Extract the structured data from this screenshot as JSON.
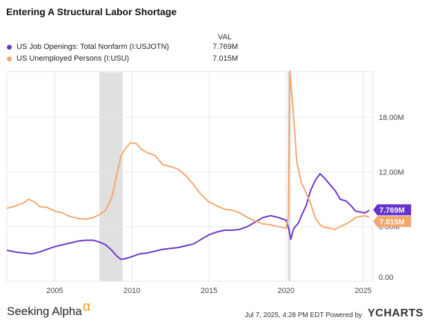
{
  "page": {
    "title": "Entering A Structural Labor Shortage",
    "val_header": "VAL",
    "footer_brand": "Seeking Alpha",
    "footer_brand_symbol": "α",
    "footer_info": "Jul 7, 2025, 4:28 PM EDT Powered by",
    "footer_logo": "YCHARTS"
  },
  "chart_data": {
    "type": "line",
    "title": "Entering A Structural Labor Shortage",
    "xlabel": "",
    "ylabel": "",
    "x_ticks": [
      2005,
      2010,
      2015,
      2020,
      2025
    ],
    "y_ticks": [
      {
        "value": 0,
        "label": "0.00"
      },
      {
        "value": 6,
        "label": "6.00M"
      },
      {
        "value": 12,
        "label": "12.00M"
      },
      {
        "value": 18,
        "label": "18.00M"
      }
    ],
    "xlim": [
      2001.9,
      2025.6
    ],
    "ylim": [
      0,
      23
    ],
    "grid": true,
    "legend_position": "top-left",
    "recessions": [
      [
        2007.9,
        2009.4
      ],
      [
        2020.1,
        2020.3
      ]
    ],
    "series": [
      {
        "name": "US Job Openings: Total Nonfarm (I:USJOTN)",
        "color": "#6633cc",
        "last_value_label": "7.769M",
        "points": [
          [
            2001.9,
            3.4
          ],
          [
            2002.5,
            3.2
          ],
          [
            2003.0,
            3.1
          ],
          [
            2003.5,
            3.0
          ],
          [
            2004.0,
            3.2
          ],
          [
            2004.5,
            3.5
          ],
          [
            2005.0,
            3.8
          ],
          [
            2005.5,
            4.0
          ],
          [
            2006.0,
            4.2
          ],
          [
            2006.5,
            4.4
          ],
          [
            2007.0,
            4.5
          ],
          [
            2007.5,
            4.5
          ],
          [
            2007.9,
            4.3
          ],
          [
            2008.3,
            4.0
          ],
          [
            2008.7,
            3.4
          ],
          [
            2009.0,
            2.8
          ],
          [
            2009.3,
            2.4
          ],
          [
            2009.6,
            2.5
          ],
          [
            2010.0,
            2.7
          ],
          [
            2010.5,
            3.0
          ],
          [
            2011.0,
            3.1
          ],
          [
            2011.5,
            3.3
          ],
          [
            2012.0,
            3.5
          ],
          [
            2012.5,
            3.6
          ],
          [
            2013.0,
            3.7
          ],
          [
            2013.5,
            3.9
          ],
          [
            2014.0,
            4.1
          ],
          [
            2014.5,
            4.6
          ],
          [
            2015.0,
            5.1
          ],
          [
            2015.5,
            5.4
          ],
          [
            2016.0,
            5.6
          ],
          [
            2016.5,
            5.6
          ],
          [
            2017.0,
            5.7
          ],
          [
            2017.5,
            6.0
          ],
          [
            2018.0,
            6.5
          ],
          [
            2018.5,
            7.0
          ],
          [
            2019.0,
            7.2
          ],
          [
            2019.5,
            7.0
          ],
          [
            2020.0,
            6.7
          ],
          [
            2020.2,
            5.6
          ],
          [
            2020.3,
            4.6
          ],
          [
            2020.5,
            5.8
          ],
          [
            2020.8,
            6.4
          ],
          [
            2021.0,
            7.2
          ],
          [
            2021.3,
            8.3
          ],
          [
            2021.6,
            10.0
          ],
          [
            2021.9,
            11.1
          ],
          [
            2022.2,
            11.8
          ],
          [
            2022.5,
            11.3
          ],
          [
            2022.9,
            10.5
          ],
          [
            2023.2,
            9.9
          ],
          [
            2023.5,
            9.0
          ],
          [
            2023.9,
            8.8
          ],
          [
            2024.2,
            8.3
          ],
          [
            2024.5,
            7.7
          ],
          [
            2024.8,
            7.6
          ],
          [
            2025.1,
            7.5
          ],
          [
            2025.4,
            7.769
          ]
        ]
      },
      {
        "name": "US Unemployed Persons (I:USU)",
        "color": "#f6a56b",
        "last_value_label": "7.015M",
        "points": [
          [
            2001.9,
            8.0
          ],
          [
            2002.5,
            8.3
          ],
          [
            2003.0,
            8.6
          ],
          [
            2003.3,
            9.0
          ],
          [
            2003.7,
            8.7
          ],
          [
            2004.0,
            8.2
          ],
          [
            2004.5,
            8.1
          ],
          [
            2005.0,
            7.7
          ],
          [
            2005.5,
            7.5
          ],
          [
            2006.0,
            7.1
          ],
          [
            2006.5,
            6.9
          ],
          [
            2007.0,
            6.8
          ],
          [
            2007.5,
            7.0
          ],
          [
            2007.9,
            7.3
          ],
          [
            2008.3,
            7.8
          ],
          [
            2008.7,
            9.2
          ],
          [
            2009.0,
            11.5
          ],
          [
            2009.3,
            13.8
          ],
          [
            2009.6,
            14.6
          ],
          [
            2009.9,
            15.2
          ],
          [
            2010.3,
            15.1
          ],
          [
            2010.6,
            14.5
          ],
          [
            2011.0,
            14.1
          ],
          [
            2011.5,
            13.8
          ],
          [
            2012.0,
            12.8
          ],
          [
            2012.5,
            12.6
          ],
          [
            2013.0,
            12.3
          ],
          [
            2013.5,
            11.6
          ],
          [
            2014.0,
            10.6
          ],
          [
            2014.5,
            9.5
          ],
          [
            2015.0,
            8.7
          ],
          [
            2015.5,
            8.3
          ],
          [
            2016.0,
            7.9
          ],
          [
            2016.5,
            7.8
          ],
          [
            2017.0,
            7.5
          ],
          [
            2017.5,
            7.0
          ],
          [
            2018.0,
            6.6
          ],
          [
            2018.5,
            6.3
          ],
          [
            2019.0,
            6.2
          ],
          [
            2019.5,
            6.0
          ],
          [
            2020.0,
            5.8
          ],
          [
            2020.15,
            7.2
          ],
          [
            2020.25,
            23.1
          ],
          [
            2020.35,
            21.0
          ],
          [
            2020.5,
            17.8
          ],
          [
            2020.7,
            13.0
          ],
          [
            2021.0,
            10.8
          ],
          [
            2021.3,
            9.7
          ],
          [
            2021.6,
            8.5
          ],
          [
            2021.9,
            6.9
          ],
          [
            2022.2,
            6.2
          ],
          [
            2022.5,
            5.9
          ],
          [
            2022.9,
            5.8
          ],
          [
            2023.2,
            5.7
          ],
          [
            2023.5,
            6.0
          ],
          [
            2023.9,
            6.3
          ],
          [
            2024.2,
            6.6
          ],
          [
            2024.5,
            7.0
          ],
          [
            2024.8,
            7.1
          ],
          [
            2025.1,
            7.2
          ],
          [
            2025.4,
            7.015
          ]
        ]
      }
    ]
  }
}
